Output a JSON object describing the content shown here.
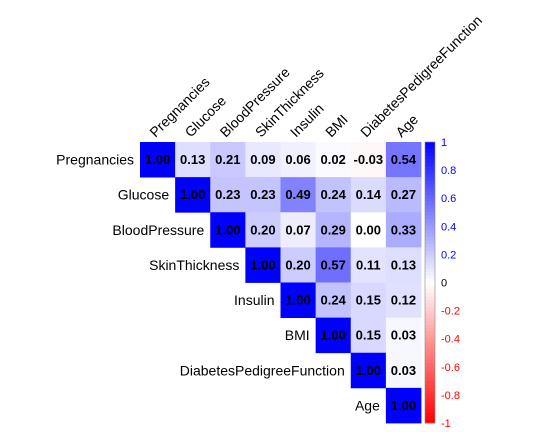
{
  "chart_data": {
    "type": "heatmap",
    "title": "",
    "variables": [
      "Pregnancies",
      "Glucose",
      "BloodPressure",
      "SkinThickness",
      "Insulin",
      "BMI",
      "DiabetesPedigreeFunction",
      "Age"
    ],
    "matrix": [
      [
        1.0,
        0.13,
        0.21,
        0.09,
        0.06,
        0.02,
        -0.03,
        0.54
      ],
      [
        null,
        1.0,
        0.23,
        0.23,
        0.49,
        0.24,
        0.14,
        0.27
      ],
      [
        null,
        null,
        1.0,
        0.2,
        0.07,
        0.29,
        0.0,
        0.33
      ],
      [
        null,
        null,
        null,
        1.0,
        0.2,
        0.57,
        0.11,
        0.13
      ],
      [
        null,
        null,
        null,
        null,
        1.0,
        0.24,
        0.15,
        0.12
      ],
      [
        null,
        null,
        null,
        null,
        null,
        1.0,
        0.15,
        0.03
      ],
      [
        null,
        null,
        null,
        null,
        null,
        null,
        1.0,
        0.03
      ],
      [
        null,
        null,
        null,
        null,
        null,
        null,
        null,
        1.0
      ]
    ],
    "matrix_labels": [
      [
        "1.00",
        "0.13",
        "0.21",
        "0.09",
        "0.06",
        "0.02",
        "-0.03",
        "0.54"
      ],
      [
        null,
        "1.00",
        "0.23",
        "0.23",
        "0.49",
        "0.24",
        "0.14",
        "0.27"
      ],
      [
        null,
        null,
        "1.00",
        "0.20",
        "0.07",
        "0.29",
        "0.00",
        "0.33"
      ],
      [
        null,
        null,
        null,
        "1.00",
        "0.20",
        "0.57",
        "0.11",
        "0.13"
      ],
      [
        null,
        null,
        null,
        null,
        "1.00",
        "0.24",
        "0.15",
        "0.12"
      ],
      [
        null,
        null,
        null,
        null,
        null,
        "1.00",
        "0.15",
        "0.03"
      ],
      [
        null,
        null,
        null,
        null,
        null,
        null,
        "1.00",
        "0.03"
      ],
      [
        null,
        null,
        null,
        null,
        null,
        null,
        null,
        "1.00"
      ]
    ],
    "layout": "upper-triangle",
    "color_scale": {
      "min": -1,
      "max": 1,
      "low_color": "#ff0000",
      "mid_color": "#ffffff",
      "high_color": "#0000ff",
      "ticks": [
        "1",
        "0.8",
        "0.6",
        "0.4",
        "0.2",
        "0",
        "-0.2",
        "-0.4",
        "-0.6",
        "-0.8",
        "-1"
      ],
      "tick_values": [
        1,
        0.8,
        0.6,
        0.4,
        0.2,
        0,
        -0.2,
        -0.4,
        -0.6,
        -0.8,
        -1
      ],
      "positive_tick_color": "#0000ff",
      "negative_tick_color": "#ff0000"
    },
    "colorbar_placement": "right",
    "grid": false
  }
}
